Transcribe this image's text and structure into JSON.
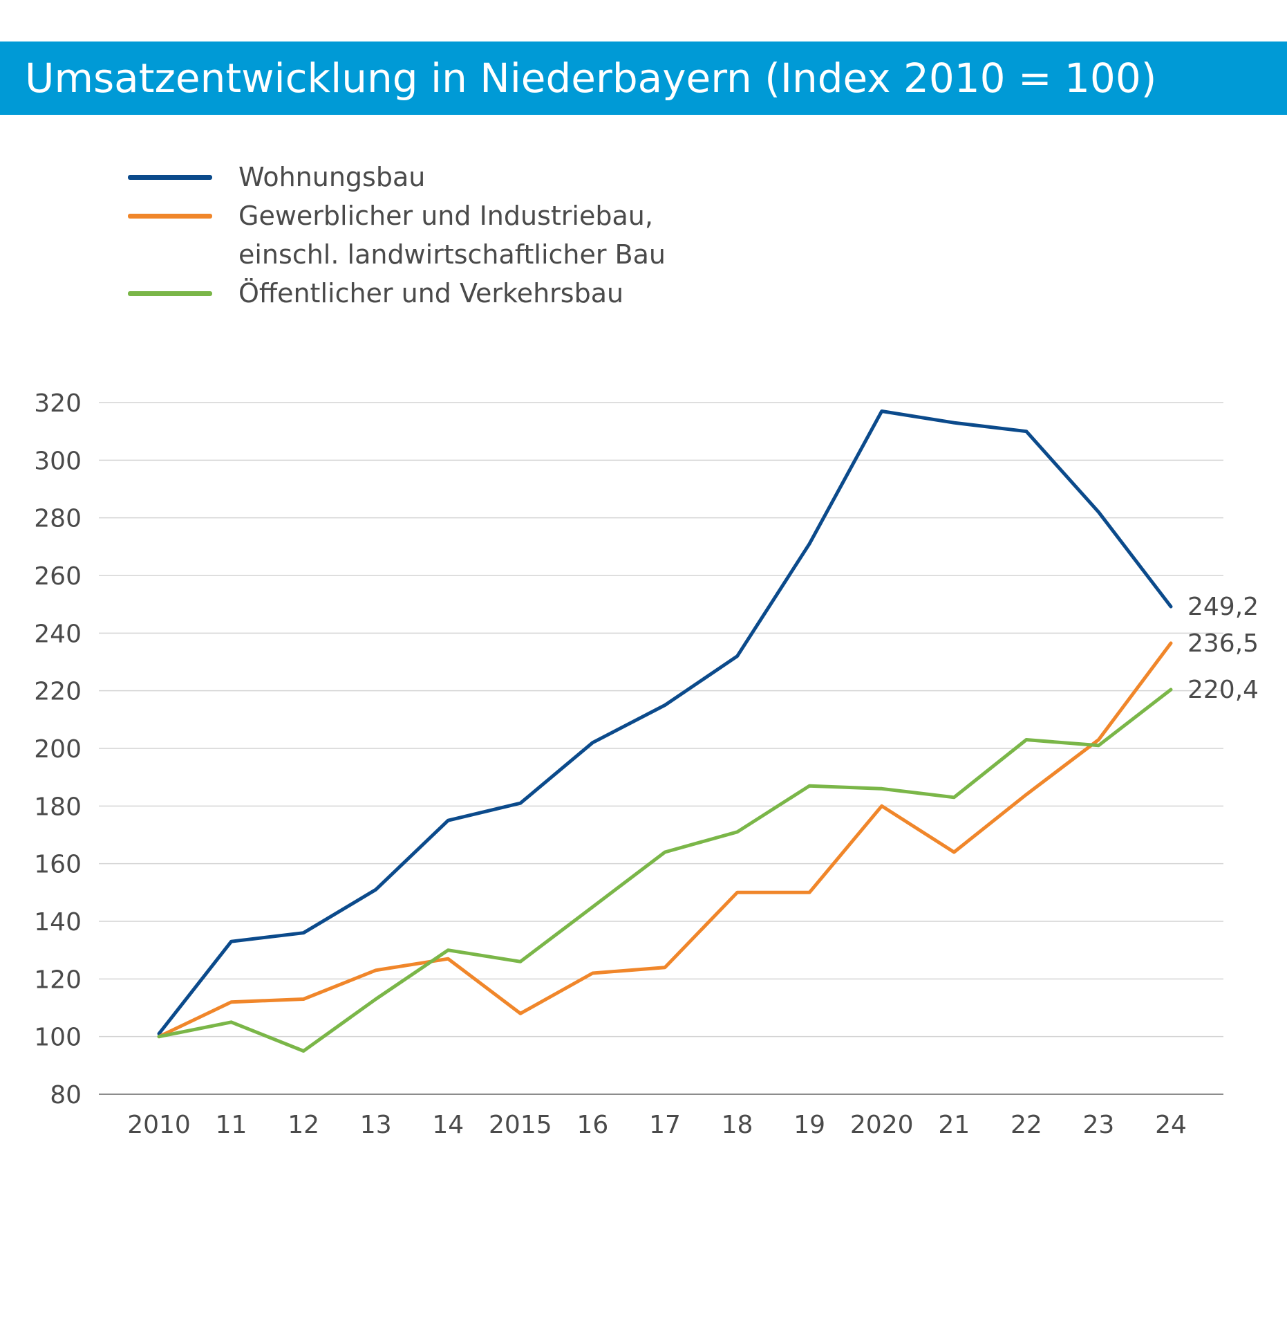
{
  "header": {
    "title": "Umsatzentwicklung in Niederbayern (Index 2010 = 100)"
  },
  "chart_data": {
    "type": "line",
    "title": "Umsatzentwicklung in Niederbayern (Index 2010 = 100)",
    "xlabel": "",
    "ylabel": "",
    "categories": [
      "2010",
      "11",
      "12",
      "13",
      "14",
      "2015",
      "16",
      "17",
      "18",
      "19",
      "2020",
      "21",
      "22",
      "23",
      "24"
    ],
    "ylim": [
      80,
      320
    ],
    "yticks": [
      80,
      100,
      120,
      140,
      160,
      180,
      200,
      220,
      240,
      260,
      280,
      300,
      320
    ],
    "grid": true,
    "legend_position": "top-left",
    "series": [
      {
        "name": "Wohnungsbau",
        "legend_lines": [
          "Wohnungsbau"
        ],
        "color": "#0b4a8b",
        "values": [
          101,
          133,
          136,
          151,
          175,
          181,
          202,
          215,
          232,
          271,
          317,
          313,
          310,
          282,
          249.2
        ],
        "end_label": "249,2"
      },
      {
        "name": "Gewerblicher und Industriebau, einschl. landwirtschaftlicher Bau",
        "legend_lines": [
          "Gewerblicher und Industriebau,",
          "einschl. landwirtschaftlicher Bau"
        ],
        "color": "#f0862a",
        "values": [
          100,
          112,
          113,
          123,
          127,
          108,
          122,
          124,
          150,
          150,
          180,
          164,
          184,
          203,
          236.5
        ],
        "end_label": "236,5"
      },
      {
        "name": "Öffentlicher und Verkehrsbau",
        "legend_lines": [
          "Öffentlicher und Verkehrsbau"
        ],
        "color": "#7ab648",
        "values": [
          100,
          105,
          95,
          113,
          130,
          126,
          145,
          164,
          171,
          187,
          186,
          183,
          203,
          201,
          220.4
        ],
        "end_label": "220,4"
      }
    ]
  }
}
